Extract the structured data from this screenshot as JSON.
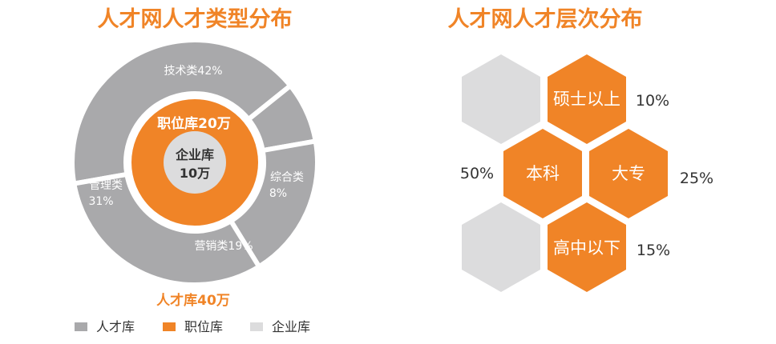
{
  "colors": {
    "orange": "#f08427",
    "gray": "#a9a9ab",
    "light_gray": "#dcdcdd",
    "title": "#f08427",
    "label_on_gray": "#ffffff",
    "dark_text": "#333333"
  },
  "left": {
    "title": "人才网人才类型分布",
    "ring_label": "职位库20万",
    "core_label_line1": "企业库",
    "core_label_line2": "10万",
    "bottom_label": "人才库40万"
  },
  "right": {
    "title": "人才网人才层次分布"
  },
  "legend": [
    {
      "label": "人才库",
      "color": "#a9a9ab"
    },
    {
      "label": "职位库",
      "color": "#f08427"
    },
    {
      "label": "企业库",
      "color": "#dcdcdd"
    }
  ],
  "chart_data": [
    {
      "type": "pie",
      "title": "人才网人才类型分布",
      "slices": [
        {
          "label": "技术类",
          "value": 42,
          "display": "技术类42%"
        },
        {
          "label": "综合类",
          "value": 8,
          "display_line1": "综合类",
          "display_line2": "8%"
        },
        {
          "label": "营销类",
          "value": 19,
          "display": "营销类19%"
        },
        {
          "label": "管理类",
          "value": 31,
          "display_line1": "管理类",
          "display_line2": "31%"
        }
      ]
    },
    {
      "type": "bar",
      "title": "人才网人才层次分布",
      "categories": [
        "硕士以上",
        "本科",
        "大专",
        "高中以下"
      ],
      "values": [
        10,
        50,
        25,
        15
      ],
      "display": [
        "10%",
        "50%",
        "25%",
        "15%"
      ]
    }
  ]
}
